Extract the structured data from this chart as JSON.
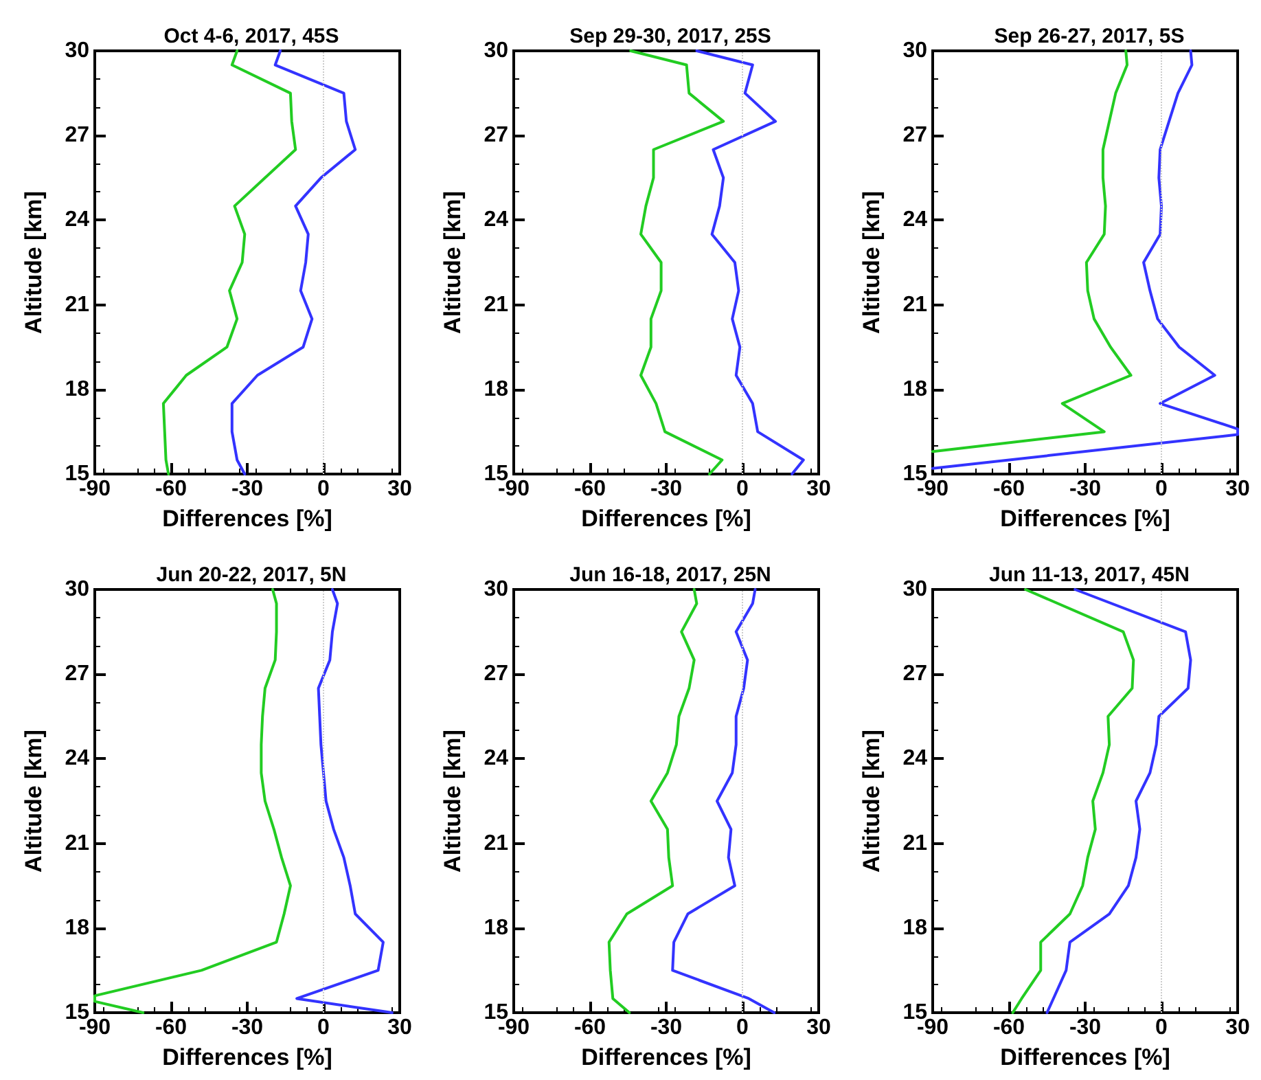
{
  "chart_data": [
    {
      "type": "line",
      "title": "Oct 4-6, 2017, 45S",
      "xlabel": "Differences [%]",
      "ylabel": "Altitude [km]",
      "xlim": [
        -90,
        30
      ],
      "xticks": [
        -90,
        -60,
        -30,
        0,
        30
      ],
      "ylim": [
        15,
        30
      ],
      "yticks": [
        15,
        18,
        21,
        24,
        27,
        30
      ],
      "grid": false,
      "marker": "none",
      "line_style": "solid",
      "ref_lines": [
        {
          "axis": "x",
          "value": 0,
          "color": "#cccccc",
          "line_style": "dotted"
        }
      ],
      "series": [
        {
          "color": "#22cc22",
          "x": [
            -34,
            -36,
            -13,
            -12.5,
            -11,
            -23,
            -35,
            -31,
            -32,
            -37,
            -34,
            -38,
            -54,
            -63,
            -62.5,
            -62,
            -61
          ],
          "values": [
            30,
            29.5,
            28.5,
            27.5,
            26.5,
            25.5,
            24.5,
            23.5,
            22.5,
            21.5,
            20.5,
            19.5,
            18.5,
            17.5,
            16.5,
            15.5,
            15
          ]
        },
        {
          "color": "#3333ff",
          "x": [
            -17,
            -19,
            8,
            9,
            12.5,
            -1,
            -11,
            -6,
            -7,
            -9,
            -4.5,
            -8,
            -26,
            -36,
            -36,
            -34,
            -31
          ],
          "values": [
            30,
            29.5,
            28.5,
            27.5,
            26.5,
            25.5,
            24.5,
            23.5,
            22.5,
            21.5,
            20.5,
            19.5,
            18.5,
            17.5,
            16.5,
            15.5,
            15
          ]
        }
      ]
    },
    {
      "type": "line",
      "title": "Sep 29-30, 2017, 25S",
      "xlabel": "Differences [%]",
      "ylabel": "Altitude [km]",
      "xlim": [
        -90,
        30
      ],
      "xticks": [
        -90,
        -60,
        -30,
        0,
        30
      ],
      "ylim": [
        15,
        30
      ],
      "yticks": [
        15,
        18,
        21,
        24,
        27,
        30
      ],
      "grid": false,
      "marker": "none",
      "line_style": "solid",
      "ref_lines": [
        {
          "axis": "x",
          "value": 0,
          "color": "#cccccc",
          "line_style": "dotted"
        }
      ],
      "series": [
        {
          "color": "#22cc22",
          "x": [
            -44,
            -22,
            -21,
            -7.5,
            -35,
            -35,
            -38,
            -40,
            -32,
            -32,
            -36,
            -36,
            -40,
            -34,
            -30.5,
            -8,
            -13
          ],
          "values": [
            30,
            29.5,
            28.5,
            27.5,
            26.5,
            25.5,
            24.5,
            23.5,
            22.5,
            21.5,
            20.5,
            19.5,
            18.5,
            17.5,
            16.5,
            15.5,
            15
          ]
        },
        {
          "color": "#3333ff",
          "x": [
            -18,
            4,
            1,
            13,
            -11.5,
            -7.5,
            -9,
            -12,
            -3,
            -1.5,
            -4,
            -1,
            -2.5,
            4,
            6,
            24,
            19.5
          ],
          "values": [
            30,
            29.5,
            28.5,
            27.5,
            26.5,
            25.5,
            24.5,
            23.5,
            22.5,
            21.5,
            20.5,
            19.5,
            18.5,
            17.5,
            16.5,
            15.5,
            15
          ]
        }
      ]
    },
    {
      "type": "line",
      "title": "Sep 26-27, 2017, 5S",
      "xlabel": "Differences [%]",
      "ylabel": "Altitude [km]",
      "xlim": [
        -90,
        30
      ],
      "xticks": [
        -90,
        -60,
        -30,
        0,
        30
      ],
      "ylim": [
        15,
        30
      ],
      "yticks": [
        15,
        18,
        21,
        24,
        27,
        30
      ],
      "grid": false,
      "marker": "none",
      "line_style": "solid",
      "ref_lines": [
        {
          "axis": "x",
          "value": 0,
          "color": "#cccccc",
          "line_style": "dotted"
        }
      ],
      "series": [
        {
          "color": "#22cc22",
          "x": [
            -14,
            -13.5,
            -18,
            -20.5,
            -23,
            -23,
            -22,
            -22.5,
            -29.5,
            -29,
            -26.5,
            -20,
            -12,
            -39,
            -22.5,
            -90
          ],
          "values": [
            30,
            29.5,
            28.5,
            27.5,
            26.5,
            25.5,
            24.5,
            23.5,
            22.5,
            21.5,
            20.5,
            19.5,
            18.5,
            17.5,
            16.5,
            15.8
          ]
        },
        {
          "color": "#3333ff",
          "x": [
            11.5,
            12,
            6.5,
            3,
            -0.5,
            -1,
            0,
            -0.5,
            -7,
            -4.5,
            -1.5,
            7,
            21,
            -0.5,
            30,
            30,
            -90
          ],
          "values": [
            30,
            29.5,
            28.5,
            27.5,
            26.5,
            25.5,
            24.5,
            23.5,
            22.5,
            21.5,
            20.5,
            19.5,
            18.5,
            17.5,
            16.6,
            16.4,
            15.2
          ]
        }
      ]
    },
    {
      "type": "line",
      "title": "Jun 20-22, 2017, 5N",
      "xlabel": "Differences [%]",
      "ylabel": "Altitude [km]",
      "xlim": [
        -90,
        30
      ],
      "xticks": [
        -90,
        -60,
        -30,
        0,
        30
      ],
      "ylim": [
        15,
        30
      ],
      "yticks": [
        15,
        18,
        21,
        24,
        27,
        30
      ],
      "grid": false,
      "marker": "none",
      "line_style": "solid",
      "ref_lines": [
        {
          "axis": "x",
          "value": 0,
          "color": "#cccccc",
          "line_style": "dotted"
        }
      ],
      "series": [
        {
          "color": "#22cc22",
          "x": [
            -20,
            -18.5,
            -18.5,
            -19,
            -23,
            -24,
            -24.5,
            -24.5,
            -23,
            -19.5,
            -16.5,
            -13,
            -15.5,
            -18.5,
            -48,
            -90,
            -90,
            -71
          ],
          "values": [
            30,
            29.5,
            28.5,
            27.5,
            26.5,
            25.5,
            24.5,
            23.5,
            22.5,
            21.5,
            20.5,
            19.5,
            18.5,
            17.5,
            16.5,
            15.6,
            15.4,
            15
          ]
        },
        {
          "color": "#3333ff",
          "x": [
            3.5,
            5.5,
            3.5,
            2.5,
            -2,
            -1.5,
            -1,
            0,
            1,
            4,
            8,
            10.5,
            12.5,
            23.5,
            21.5,
            -10.5,
            27
          ],
          "values": [
            30,
            29.5,
            28.5,
            27.5,
            26.5,
            25.5,
            24.5,
            23.5,
            22.5,
            21.5,
            20.5,
            19.5,
            18.5,
            17.5,
            16.5,
            15.5,
            15
          ]
        }
      ]
    },
    {
      "type": "line",
      "title": "Jun 16-18, 2017, 25N",
      "xlabel": "Differences [%]",
      "ylabel": "Altitude [km]",
      "xlim": [
        -90,
        30
      ],
      "xticks": [
        -90,
        -60,
        -30,
        0,
        30
      ],
      "ylim": [
        15,
        30
      ],
      "yticks": [
        15,
        18,
        21,
        24,
        27,
        30
      ],
      "grid": false,
      "marker": "none",
      "line_style": "solid",
      "ref_lines": [
        {
          "axis": "x",
          "value": 0,
          "color": "#cccccc",
          "line_style": "dotted"
        }
      ],
      "series": [
        {
          "color": "#22cc22",
          "x": [
            -19,
            -18,
            -24,
            -19,
            -21,
            -25,
            -26,
            -29.5,
            -36,
            -29.5,
            -29,
            -27.5,
            -45.5,
            -52.5,
            -52,
            -51,
            -44.5
          ],
          "values": [
            30,
            29.5,
            28.5,
            27.5,
            26.5,
            25.5,
            24.5,
            23.5,
            22.5,
            21.5,
            20.5,
            19.5,
            18.5,
            17.5,
            16.5,
            15.5,
            15
          ]
        },
        {
          "color": "#3333ff",
          "x": [
            5,
            4,
            -2.5,
            2,
            0.5,
            -2.5,
            -2.5,
            -4,
            -10,
            -4.5,
            -5.5,
            -3,
            -21.5,
            -27,
            -27.5,
            2.5,
            12.5
          ],
          "values": [
            30,
            29.5,
            28.5,
            27.5,
            26.5,
            25.5,
            24.5,
            23.5,
            22.5,
            21.5,
            20.5,
            19.5,
            18.5,
            17.5,
            16.5,
            15.5,
            15
          ]
        }
      ]
    },
    {
      "type": "line",
      "title": "Jun 11-13, 2017, 45N",
      "xlabel": "Differences [%]",
      "ylabel": "Altitude [km]",
      "xlim": [
        -90,
        30
      ],
      "xticks": [
        -90,
        -60,
        -30,
        0,
        30
      ],
      "ylim": [
        15,
        30
      ],
      "yticks": [
        15,
        18,
        21,
        24,
        27,
        30
      ],
      "grid": false,
      "marker": "none",
      "line_style": "solid",
      "ref_lines": [
        {
          "axis": "x",
          "value": 0,
          "color": "#cccccc",
          "line_style": "dotted"
        }
      ],
      "series": [
        {
          "color": "#22cc22",
          "x": [
            -53.5,
            -15,
            -11,
            -11.5,
            -21,
            -20.5,
            -23,
            -27,
            -26,
            -29,
            -31,
            -36,
            -47.5,
            -47.5,
            -55,
            -58.5
          ],
          "values": [
            30,
            28.5,
            27.5,
            26.5,
            25.5,
            24.5,
            23.5,
            22.5,
            21.5,
            20.5,
            19.5,
            18.5,
            17.5,
            16.5,
            15.5,
            15
          ]
        },
        {
          "color": "#3333ff",
          "x": [
            -34,
            9.5,
            11.5,
            10.5,
            -1,
            -2,
            -4.5,
            -10,
            -8.5,
            -10,
            -13,
            -20.5,
            -36,
            -37.5,
            -42.5,
            -45
          ],
          "values": [
            30,
            28.5,
            27.5,
            26.5,
            25.5,
            24.5,
            23.5,
            22.5,
            21.5,
            20.5,
            19.5,
            18.5,
            17.5,
            16.5,
            15.5,
            15
          ]
        }
      ]
    }
  ]
}
